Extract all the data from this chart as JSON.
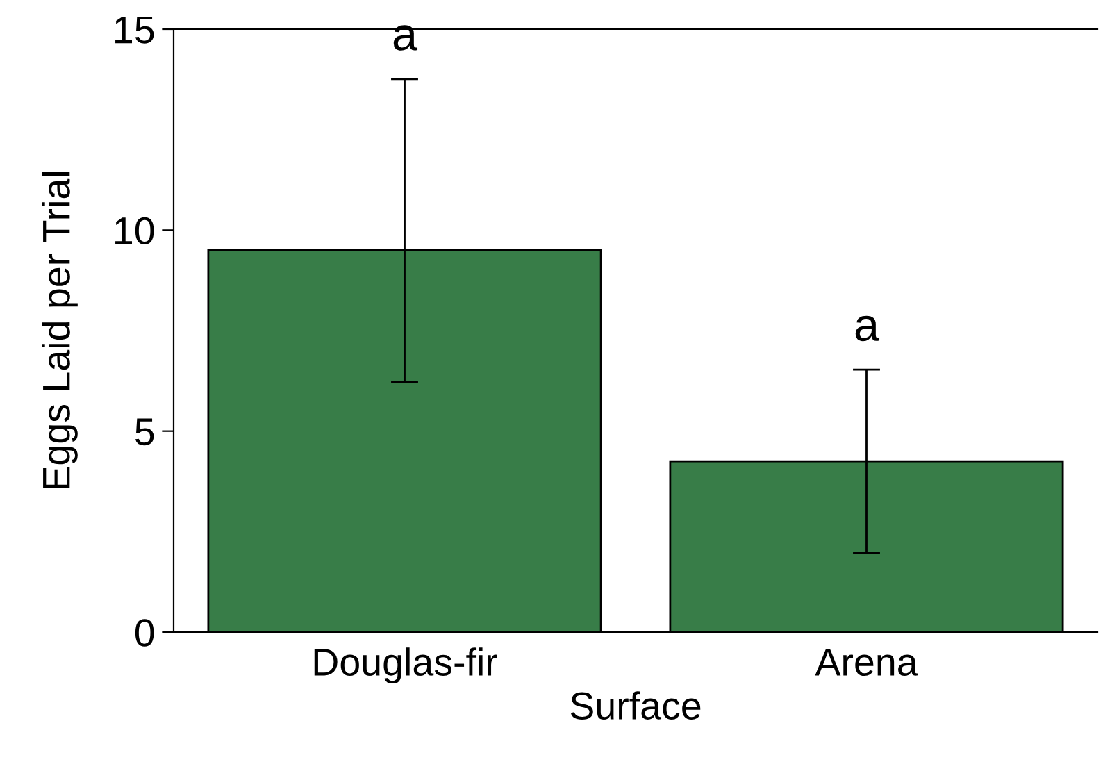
{
  "chart_data": {
    "type": "bar",
    "xlabel": "Surface",
    "ylabel": "Eggs Laid per Trial",
    "categories": [
      "Douglas-fir",
      "Arena"
    ],
    "values": [
      9.5,
      4.25
    ],
    "errors": [
      [
        6.22,
        13.76
      ],
      [
        1.97,
        6.53
      ]
    ],
    "color": "#387d48",
    "ylim": [
      0,
      15
    ],
    "yticks": [
      0,
      5,
      10,
      15
    ],
    "grid": false,
    "legend": false,
    "annotations": [
      "a",
      "a"
    ]
  }
}
